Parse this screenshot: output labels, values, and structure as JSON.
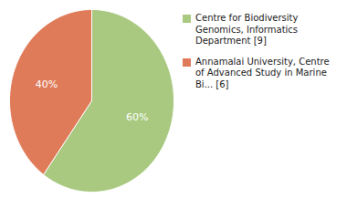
{
  "chart_data": {
    "type": "pie",
    "categories": [
      "Centre for Biodiversity\nGenomics, Informatics\nDepartment [9]",
      "Annamalai University, Centre\nof Advanced Study in Marine\nBi... [6]"
    ],
    "values": [
      60,
      40
    ],
    "value_labels": [
      "60%",
      "40%"
    ],
    "colors": [
      "#a8c97f",
      "#e07b5a"
    ],
    "data_labels": true,
    "legend": "right"
  }
}
